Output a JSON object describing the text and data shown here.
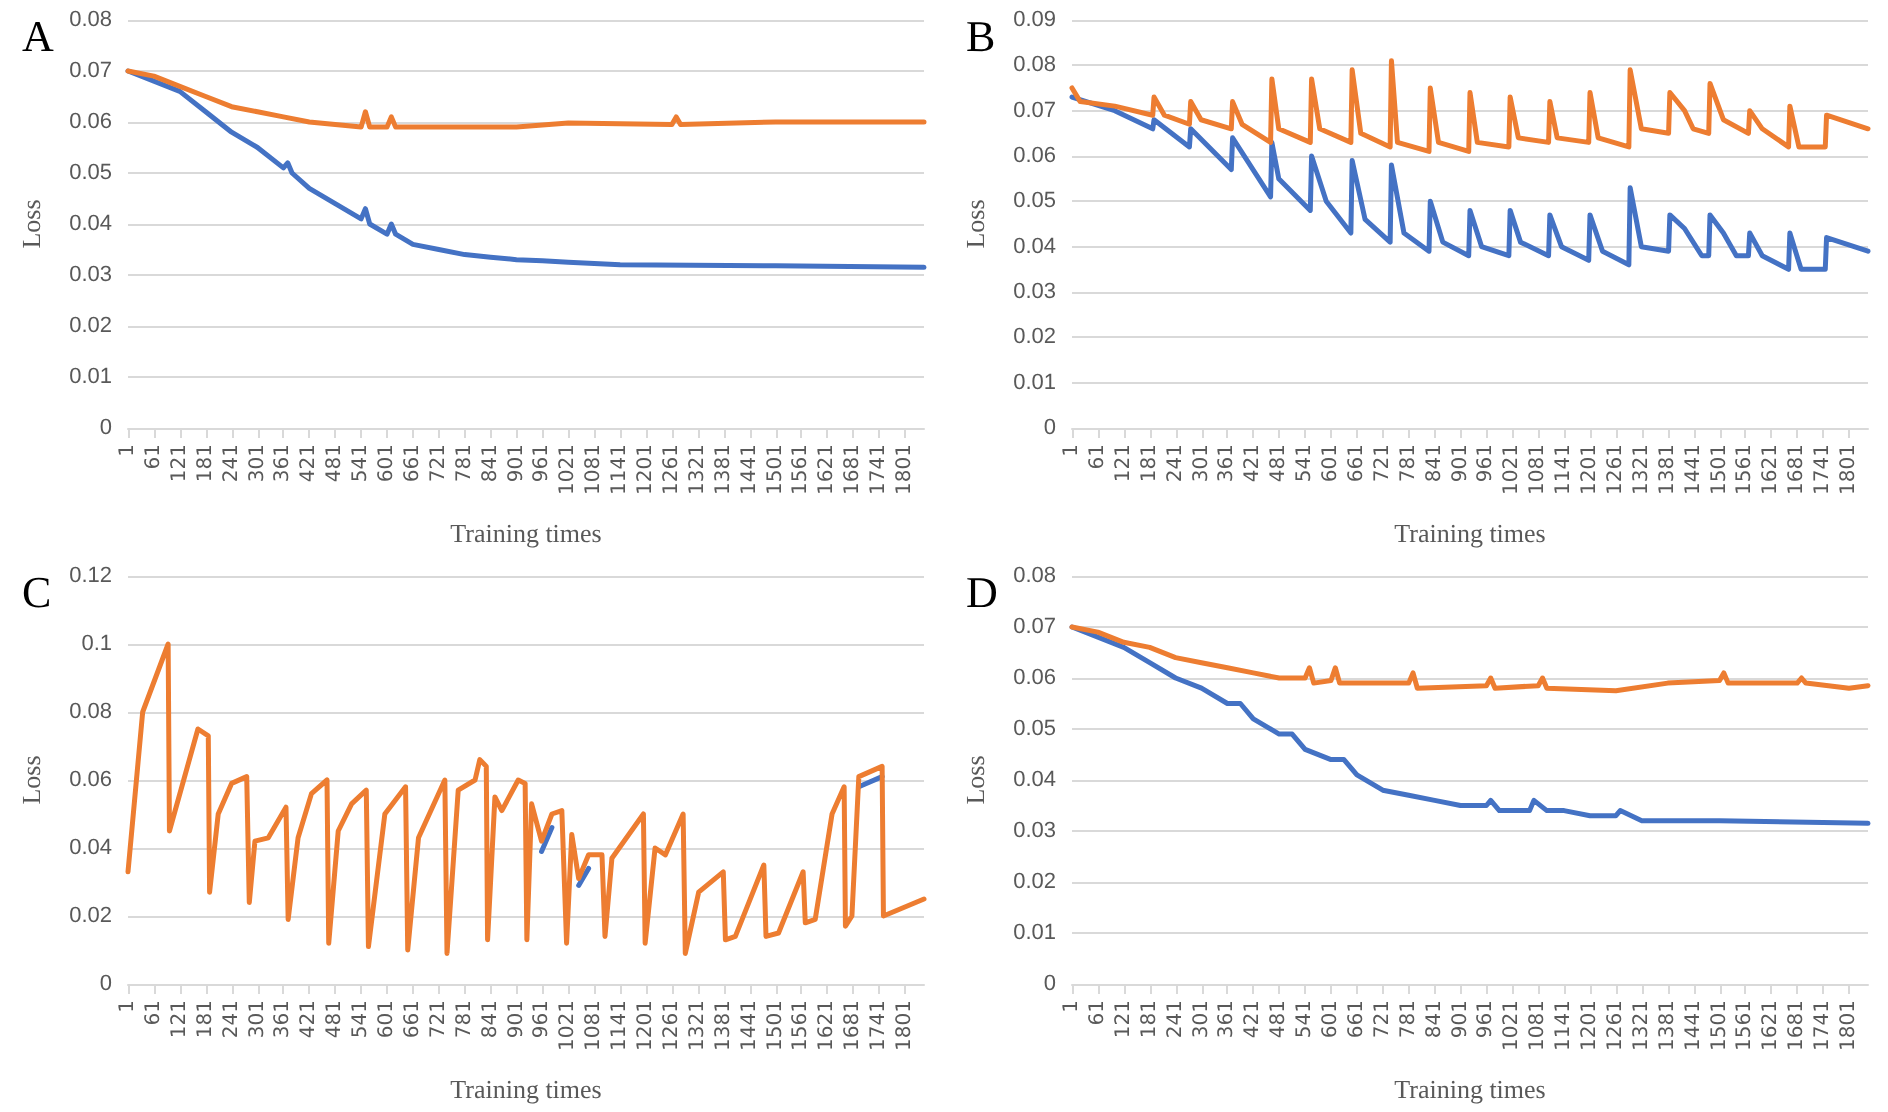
{
  "chart_data": [
    {
      "type": "line",
      "title": "A",
      "xlabel": "Training times",
      "ylabel": "Loss",
      "xlim": [
        1,
        1845
      ],
      "xticks": [
        1,
        61,
        121,
        181,
        241,
        301,
        361,
        421,
        481,
        541,
        601,
        661,
        721,
        781,
        841,
        901,
        961,
        1021,
        1081,
        1141,
        1201,
        1261,
        1321,
        1381,
        1441,
        1501,
        1561,
        1621,
        1681,
        1741,
        1801
      ],
      "ylim": [
        0,
        0.08
      ],
      "yticks": [
        0,
        0.01,
        0.02,
        0.03,
        0.04,
        0.05,
        0.06,
        0.07,
        0.08
      ],
      "grid": "y",
      "marker": "none",
      "line_style": "solid",
      "series": [
        {
          "color": "#4472c4",
          "x": [
            1,
            61,
            121,
            181,
            241,
            301,
            361,
            371,
            381,
            421,
            481,
            541,
            551,
            561,
            601,
            611,
            621,
            661,
            721,
            781,
            841,
            901,
            961,
            1021,
            1141,
            1501,
            1845
          ],
          "values": [
            0.07,
            0.068,
            0.066,
            0.062,
            0.058,
            0.055,
            0.051,
            0.052,
            0.05,
            0.047,
            0.044,
            0.041,
            0.043,
            0.04,
            0.038,
            0.04,
            0.038,
            0.036,
            0.035,
            0.034,
            0.0335,
            0.033,
            0.0328,
            0.0325,
            0.032,
            0.0318,
            0.0315
          ]
        },
        {
          "color": "#ed7d31",
          "x": [
            1,
            61,
            121,
            181,
            241,
            301,
            361,
            421,
            481,
            541,
            551,
            561,
            601,
            611,
            621,
            721,
            901,
            1021,
            1261,
            1271,
            1281,
            1501,
            1741,
            1845
          ],
          "values": [
            0.07,
            0.069,
            0.067,
            0.065,
            0.063,
            0.062,
            0.061,
            0.06,
            0.0595,
            0.059,
            0.062,
            0.059,
            0.059,
            0.061,
            0.059,
            0.059,
            0.059,
            0.0598,
            0.0595,
            0.061,
            0.0595,
            0.06,
            0.06,
            0.06
          ]
        }
      ]
    },
    {
      "type": "line",
      "title": "B",
      "xlabel": "Training times",
      "ylabel": "Loss",
      "xlim": [
        1,
        1845
      ],
      "xticks": [
        1,
        61,
        121,
        181,
        241,
        301,
        361,
        421,
        481,
        541,
        601,
        661,
        721,
        781,
        841,
        901,
        961,
        1021,
        1081,
        1141,
        1201,
        1261,
        1321,
        1381,
        1441,
        1501,
        1561,
        1621,
        1681,
        1741,
        1801
      ],
      "ylim": [
        0,
        0.09
      ],
      "yticks": [
        0,
        0.01,
        0.02,
        0.03,
        0.04,
        0.05,
        0.06,
        0.07,
        0.08,
        0.09
      ],
      "grid": "y",
      "marker": "none",
      "line_style": "solid",
      "series": [
        {
          "color": "#4472c4",
          "x": [
            1,
            100,
            188,
            191,
            273,
            276,
            370,
            373,
            461,
            464,
            480,
            553,
            556,
            590,
            647,
            650,
            680,
            738,
            741,
            770,
            828,
            831,
            860,
            920,
            923,
            950,
            1013,
            1016,
            1040,
            1105,
            1108,
            1135,
            1198,
            1201,
            1230,
            1291,
            1294,
            1320,
            1383,
            1386,
            1420,
            1460,
            1476,
            1479,
            1510,
            1540,
            1568,
            1571,
            1600,
            1661,
            1664,
            1690,
            1746,
            1749,
            1845
          ],
          "values": [
            0.073,
            0.07,
            0.066,
            0.068,
            0.062,
            0.066,
            0.057,
            0.064,
            0.051,
            0.063,
            0.055,
            0.048,
            0.06,
            0.05,
            0.043,
            0.059,
            0.046,
            0.041,
            0.058,
            0.043,
            0.039,
            0.05,
            0.041,
            0.038,
            0.048,
            0.04,
            0.038,
            0.048,
            0.041,
            0.038,
            0.047,
            0.04,
            0.037,
            0.047,
            0.039,
            0.036,
            0.053,
            0.04,
            0.039,
            0.047,
            0.044,
            0.038,
            0.038,
            0.047,
            0.043,
            0.038,
            0.038,
            0.043,
            0.038,
            0.035,
            0.043,
            0.035,
            0.035,
            0.042,
            0.039
          ]
        },
        {
          "color": "#ed7d31",
          "x": [
            1,
            20,
            100,
            188,
            191,
            215,
            273,
            276,
            300,
            370,
            373,
            395,
            461,
            464,
            480,
            553,
            556,
            575,
            647,
            650,
            670,
            738,
            741,
            755,
            828,
            831,
            850,
            920,
            923,
            940,
            1013,
            1016,
            1035,
            1105,
            1108,
            1125,
            1198,
            1201,
            1220,
            1291,
            1294,
            1320,
            1383,
            1386,
            1420,
            1440,
            1476,
            1479,
            1510,
            1568,
            1571,
            1600,
            1661,
            1664,
            1685,
            1746,
            1749,
            1845
          ],
          "values": [
            0.075,
            0.072,
            0.071,
            0.069,
            0.073,
            0.069,
            0.067,
            0.072,
            0.068,
            0.066,
            0.072,
            0.067,
            0.063,
            0.077,
            0.066,
            0.063,
            0.077,
            0.066,
            0.063,
            0.079,
            0.065,
            0.062,
            0.081,
            0.063,
            0.061,
            0.075,
            0.063,
            0.061,
            0.074,
            0.063,
            0.062,
            0.073,
            0.064,
            0.063,
            0.072,
            0.064,
            0.063,
            0.074,
            0.064,
            0.062,
            0.079,
            0.066,
            0.065,
            0.074,
            0.07,
            0.066,
            0.065,
            0.076,
            0.068,
            0.065,
            0.07,
            0.066,
            0.062,
            0.071,
            0.062,
            0.062,
            0.069,
            0.066
          ]
        }
      ]
    },
    {
      "type": "line",
      "title": "C",
      "xlabel": "Training times",
      "ylabel": "Loss",
      "xlim": [
        1,
        1845
      ],
      "xticks": [
        1,
        61,
        121,
        181,
        241,
        301,
        361,
        421,
        481,
        541,
        601,
        661,
        721,
        781,
        841,
        901,
        961,
        1021,
        1081,
        1141,
        1201,
        1261,
        1321,
        1381,
        1441,
        1501,
        1561,
        1621,
        1681,
        1741,
        1801
      ],
      "ylim": [
        0,
        0.12
      ],
      "yticks": [
        0,
        0.02,
        0.04,
        0.06,
        0.08,
        0.1,
        0.12
      ],
      "grid": "y",
      "marker": "none",
      "line_style": "solid",
      "series": [
        {
          "color": "#4472c4",
          "x": [
            959,
            983,
            1000,
            1045,
            1068,
            1100,
            1694,
            1748
          ],
          "values": [
            0.039,
            0.046,
            null,
            0.029,
            0.034,
            null,
            0.058,
            0.061
          ]
        },
        {
          "color": "#ed7d31",
          "x": [
            1,
            35,
            94,
            97,
            163,
            187,
            190,
            210,
            241,
            276,
            282,
            295,
            326,
            367,
            372,
            395,
            426,
            462,
            466,
            488,
            519,
            553,
            558,
            596,
            644,
            649,
            674,
            735,
            740,
            766,
            805,
            816,
            831,
            834,
            851,
            867,
            905,
            921,
            925,
            936,
            959,
            983,
            1006,
            1017,
            1029,
            1045,
            1068,
            1099,
            1106,
            1122,
            1195,
            1199,
            1222,
            1246,
            1287,
            1292,
            1323,
            1380,
            1385,
            1408,
            1474,
            1479,
            1508,
            1565,
            1570,
            1593,
            1632,
            1660,
            1663,
            1678,
            1694,
            1748,
            1751,
            1845
          ],
          "values": [
            0.033,
            0.08,
            0.1,
            0.045,
            0.075,
            0.073,
            0.027,
            0.05,
            0.059,
            0.061,
            0.024,
            0.042,
            0.043,
            0.052,
            0.019,
            0.043,
            0.056,
            0.06,
            0.012,
            0.045,
            0.053,
            0.057,
            0.011,
            0.05,
            0.058,
            0.01,
            0.043,
            0.06,
            0.009,
            0.057,
            0.06,
            0.066,
            0.064,
            0.013,
            0.055,
            0.051,
            0.06,
            0.059,
            0.013,
            0.053,
            0.042,
            0.05,
            0.051,
            0.012,
            0.044,
            0.031,
            0.038,
            0.038,
            0.014,
            0.037,
            0.05,
            0.012,
            0.04,
            0.038,
            0.05,
            0.009,
            0.027,
            0.033,
            0.013,
            0.014,
            0.035,
            0.014,
            0.015,
            0.033,
            0.018,
            0.019,
            0.05,
            0.058,
            0.017,
            0.02,
            0.061,
            0.064,
            0.02,
            0.025
          ]
        }
      ]
    },
    {
      "type": "line",
      "title": "D",
      "xlabel": "Training times",
      "ylabel": "Loss",
      "xlim": [
        1,
        1845
      ],
      "xticks": [
        1,
        61,
        121,
        181,
        241,
        301,
        361,
        421,
        481,
        541,
        601,
        661,
        721,
        781,
        841,
        901,
        961,
        1021,
        1081,
        1141,
        1201,
        1261,
        1321,
        1381,
        1441,
        1501,
        1561,
        1621,
        1681,
        1741,
        1801
      ],
      "ylim": [
        0,
        0.08
      ],
      "yticks": [
        0,
        0.01,
        0.02,
        0.03,
        0.04,
        0.05,
        0.06,
        0.07,
        0.08
      ],
      "grid": "y",
      "marker": "none",
      "line_style": "solid",
      "series": [
        {
          "color": "#4472c4",
          "x": [
            1,
            61,
            121,
            181,
            241,
            301,
            361,
            391,
            421,
            481,
            511,
            541,
            601,
            631,
            661,
            721,
            781,
            841,
            901,
            961,
            971,
            991,
            1021,
            1061,
            1071,
            1101,
            1141,
            1201,
            1261,
            1271,
            1321,
            1501,
            1845
          ],
          "values": [
            0.07,
            0.068,
            0.066,
            0.063,
            0.06,
            0.058,
            0.055,
            0.055,
            0.052,
            0.049,
            0.049,
            0.046,
            0.044,
            0.044,
            0.041,
            0.038,
            0.037,
            0.036,
            0.035,
            0.035,
            0.036,
            0.034,
            0.034,
            0.034,
            0.036,
            0.034,
            0.034,
            0.033,
            0.033,
            0.034,
            0.032,
            0.032,
            0.0315
          ]
        },
        {
          "color": "#ed7d31",
          "x": [
            1,
            61,
            121,
            181,
            241,
            301,
            361,
            421,
            481,
            541,
            551,
            561,
            601,
            611,
            621,
            781,
            791,
            801,
            961,
            971,
            981,
            1081,
            1091,
            1101,
            1261,
            1381,
            1501,
            1511,
            1521,
            1681,
            1691,
            1701,
            1801,
            1845
          ],
          "values": [
            0.07,
            0.069,
            0.067,
            0.066,
            0.064,
            0.063,
            0.062,
            0.061,
            0.06,
            0.06,
            0.062,
            0.059,
            0.0595,
            0.062,
            0.059,
            0.059,
            0.061,
            0.058,
            0.0585,
            0.06,
            0.058,
            0.0585,
            0.06,
            0.058,
            0.0575,
            0.059,
            0.0595,
            0.061,
            0.059,
            0.059,
            0.06,
            0.059,
            0.058,
            0.0585
          ]
        }
      ]
    }
  ]
}
